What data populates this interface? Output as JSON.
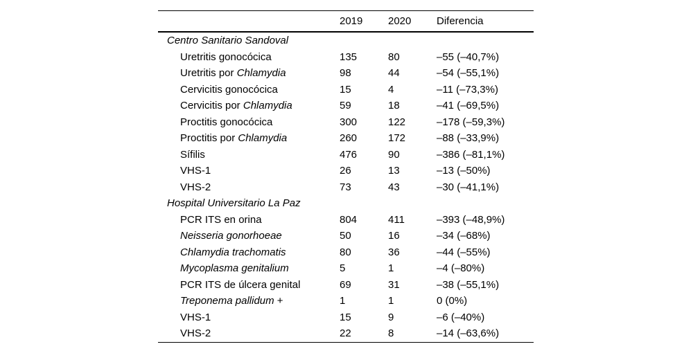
{
  "page": {
    "background": "#ffffff",
    "text_color": "#000000",
    "rule_color": "#000000"
  },
  "table": {
    "columns": [
      "",
      "2019",
      "2020",
      "Diferencia"
    ],
    "sections": [
      {
        "title": "Centro Sanitario Sandoval",
        "rows": [
          {
            "label": [
              {
                "t": "Uretritis gonocócica",
                "i": false
              }
            ],
            "v2019": "135",
            "v2020": "80",
            "diff": "–55 (–40,7%)"
          },
          {
            "label": [
              {
                "t": "Uretritis por ",
                "i": false
              },
              {
                "t": "Chlamydia",
                "i": true
              }
            ],
            "v2019": "98",
            "v2020": "44",
            "diff": "–54 (–55,1%)"
          },
          {
            "label": [
              {
                "t": "Cervicitis gonocócica",
                "i": false
              }
            ],
            "v2019": "15",
            "v2020": "4",
            "diff": "–11 (–73,3%)"
          },
          {
            "label": [
              {
                "t": "Cervicitis por ",
                "i": false
              },
              {
                "t": "Chlamydia",
                "i": true
              }
            ],
            "v2019": "59",
            "v2020": "18",
            "diff": "–41 (–69,5%)"
          },
          {
            "label": [
              {
                "t": "Proctitis gonocócica",
                "i": false
              }
            ],
            "v2019": "300",
            "v2020": "122",
            "diff": "–178 (–59,3%)"
          },
          {
            "label": [
              {
                "t": "Proctitis por ",
                "i": false
              },
              {
                "t": "Chlamydia",
                "i": true
              }
            ],
            "v2019": "260",
            "v2020": "172",
            "diff": "–88 (–33,9%)"
          },
          {
            "label": [
              {
                "t": "Sífilis",
                "i": false
              }
            ],
            "v2019": "476",
            "v2020": "90",
            "diff": "–386 (–81,1%)"
          },
          {
            "label": [
              {
                "t": "VHS-1",
                "i": false
              }
            ],
            "v2019": "26",
            "v2020": "13",
            "diff": "–13 (–50%)"
          },
          {
            "label": [
              {
                "t": "VHS-2",
                "i": false
              }
            ],
            "v2019": "73",
            "v2020": "43",
            "diff": "–30 (–41,1%)"
          }
        ]
      },
      {
        "title": "Hospital Universitario La Paz",
        "rows": [
          {
            "label": [
              {
                "t": "PCR ITS en orina",
                "i": false
              }
            ],
            "v2019": "804",
            "v2020": "411",
            "diff": "–393 (–48,9%)"
          },
          {
            "label": [
              {
                "t": "Neisseria gonorhoeae",
                "i": true
              }
            ],
            "v2019": "50",
            "v2020": "16",
            "diff": "–34 (–68%)"
          },
          {
            "label": [
              {
                "t": "Chlamydia trachomatis",
                "i": true
              }
            ],
            "v2019": "80",
            "v2020": "36",
            "diff": "–44 (–55%)"
          },
          {
            "label": [
              {
                "t": "Mycoplasma genitalium",
                "i": true
              }
            ],
            "v2019": "5",
            "v2020": "1",
            "diff": "–4 (–80%)"
          },
          {
            "label": [
              {
                "t": "PCR ITS de úlcera genital",
                "i": false
              }
            ],
            "v2019": "69",
            "v2020": "31",
            "diff": "–38 (–55,1%)"
          },
          {
            "label": [
              {
                "t": "Treponema pallidum",
                "i": true
              },
              {
                "t": " +",
                "i": false
              }
            ],
            "v2019": "1",
            "v2020": "1",
            "diff": "0 (0%)"
          },
          {
            "label": [
              {
                "t": "VHS-1",
                "i": false
              }
            ],
            "v2019": "15",
            "v2020": "9",
            "diff": "–6 (–40%)"
          },
          {
            "label": [
              {
                "t": "VHS-2",
                "i": false
              }
            ],
            "v2019": "22",
            "v2020": "8",
            "diff": "–14 (–63,6%)"
          }
        ]
      }
    ]
  }
}
